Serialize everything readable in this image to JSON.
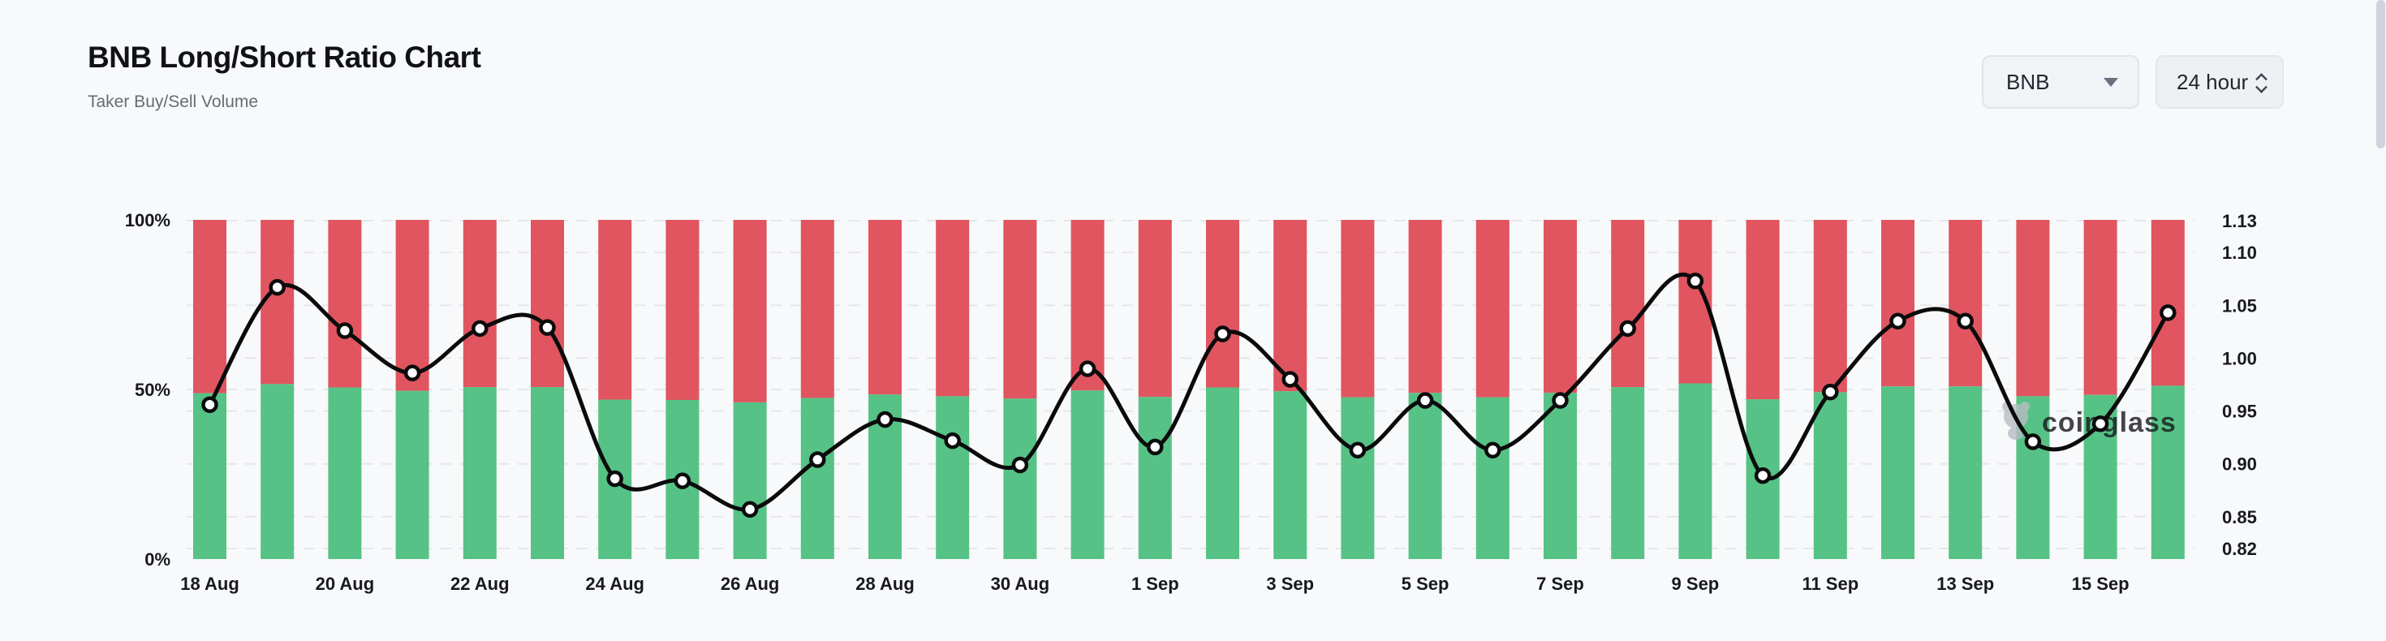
{
  "header": {
    "title": "BNB Long/Short Ratio Chart",
    "subtitle": "Taker Buy/Sell Volume"
  },
  "controls": {
    "symbol": "BNB",
    "interval": "24 hour"
  },
  "watermark": {
    "text": "coinglass"
  },
  "chart_data": {
    "type": "bar",
    "subtype": "stacked-bar-with-line",
    "title": "BNB Long/Short Ratio Chart",
    "categories": [
      "18 Aug",
      "19 Aug",
      "20 Aug",
      "21 Aug",
      "22 Aug",
      "23 Aug",
      "24 Aug",
      "25 Aug",
      "26 Aug",
      "27 Aug",
      "28 Aug",
      "29 Aug",
      "30 Aug",
      "31 Aug",
      "1 Sep",
      "2 Sep",
      "3 Sep",
      "4 Sep",
      "5 Sep",
      "6 Sep",
      "7 Sep",
      "8 Sep",
      "9 Sep",
      "10 Sep",
      "11 Sep",
      "12 Sep",
      "13 Sep",
      "14 Sep",
      "15 Sep",
      "16 Sep"
    ],
    "x_tick_labels": [
      "18 Aug",
      "20 Aug",
      "22 Aug",
      "24 Aug",
      "26 Aug",
      "28 Aug",
      "30 Aug",
      "1 Sep",
      "3 Sep",
      "5 Sep",
      "7 Sep",
      "9 Sep",
      "11 Sep",
      "13 Sep",
      "15 Sep"
    ],
    "x_tick_interval": 2,
    "stack_total": 100,
    "series": [
      {
        "name": "Taker Buy %",
        "type": "bar",
        "axis": "left",
        "values": [
          48.9,
          51.6,
          50.6,
          49.6,
          50.7,
          50.7,
          47.0,
          46.9,
          46.2,
          47.5,
          48.5,
          48.0,
          47.3,
          49.7,
          47.8,
          50.6,
          49.5,
          47.7,
          49.0,
          47.7,
          49.0,
          50.7,
          51.8,
          47.1,
          49.2,
          50.9,
          50.9,
          48.0,
          48.4,
          51.1
        ]
      },
      {
        "name": "Taker Sell %",
        "type": "bar",
        "axis": "left",
        "values": [
          51.1,
          48.4,
          49.4,
          50.4,
          49.3,
          49.3,
          53.0,
          53.1,
          53.8,
          52.5,
          51.5,
          52.0,
          52.7,
          50.3,
          52.2,
          49.4,
          50.5,
          52.3,
          51.0,
          52.3,
          51.0,
          49.3,
          48.2,
          52.9,
          50.8,
          49.1,
          49.1,
          52.0,
          51.6,
          48.9
        ]
      },
      {
        "name": "Long/Short Ratio",
        "type": "line",
        "axis": "right",
        "values": [
          0.956,
          1.067,
          1.026,
          0.986,
          1.028,
          1.029,
          0.886,
          0.884,
          0.857,
          0.904,
          0.942,
          0.922,
          0.899,
          0.99,
          0.916,
          1.023,
          0.98,
          0.913,
          0.96,
          0.913,
          0.96,
          1.028,
          1.073,
          0.889,
          0.968,
          1.035,
          1.035,
          0.921,
          0.938,
          1.043
        ]
      }
    ],
    "left_axis": {
      "tick_labels": [
        "100%",
        "50%",
        "0%"
      ],
      "tick_values": [
        100,
        50,
        0
      ],
      "range": [
        0,
        100
      ]
    },
    "right_axis": {
      "tick_labels": [
        "1.13",
        "1.10",
        "1.05",
        "1.00",
        "0.95",
        "0.90",
        "0.85",
        "0.82"
      ],
      "tick_values": [
        1.13,
        1.1,
        1.05,
        1.0,
        0.95,
        0.9,
        0.85,
        0.82
      ],
      "range": [
        0.82,
        1.13
      ]
    },
    "grid": "dashed-horizontal",
    "legend": "none",
    "colors": {
      "buy": "#56C285",
      "sell": "#E0555F",
      "line": "#0B0B0C",
      "marker_fill": "#FFFFFF",
      "grid": "#E6E7EA",
      "axis_text": "#17191E",
      "watermark": "#B9BDC4",
      "background": "#F8F9FA"
    }
  }
}
